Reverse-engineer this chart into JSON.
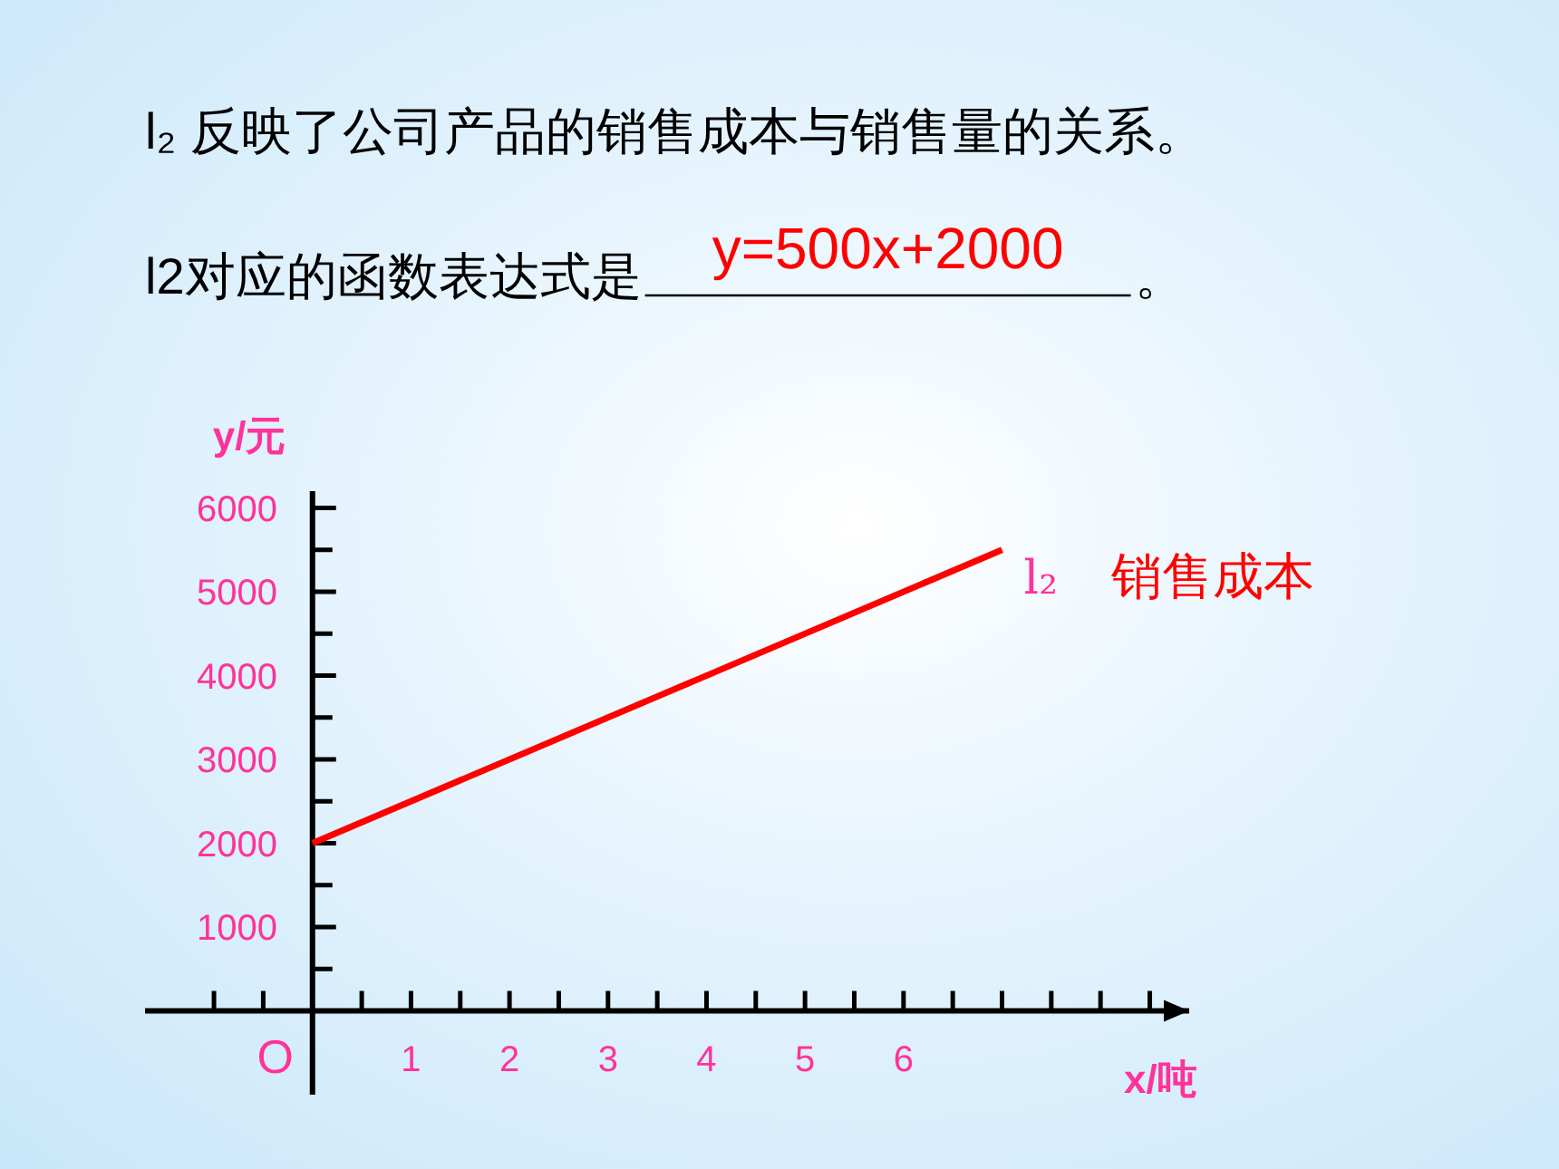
{
  "chart_data": {
    "type": "line",
    "title": "l₂ 反映了公司产品的销售成本与销售量的关系。",
    "subtitle": "l2对应的函数表达式是",
    "annotations": [
      "y=500x+2000",
      "。",
      {
        "text": "l₂",
        "x": 7,
        "y": 5500
      },
      "O"
    ],
    "xlabel": "x/吨",
    "ylabel": "y/元",
    "x": [
      0,
      7
    ],
    "series": [
      {
        "name": "销售成本",
        "color": "#ff0000",
        "values": [
          2000,
          5500
        ]
      }
    ],
    "xlim": [
      -1.7,
      8.9
    ],
    "ylim": [
      -1000,
      6200
    ],
    "xticks": [
      {
        "value": -1,
        "label": null
      },
      {
        "value": -0.5,
        "label": null
      },
      {
        "value": 0.5,
        "label": null
      },
      1,
      {
        "value": 1.5,
        "label": null
      },
      2,
      {
        "value": 2.5,
        "label": null
      },
      3,
      {
        "value": 3.5,
        "label": null
      },
      4,
      {
        "value": 4.5,
        "label": null
      },
      5,
      {
        "value": 5.5,
        "label": null
      },
      6,
      {
        "value": 6.5,
        "label": null
      },
      {
        "value": 7,
        "label": null
      },
      {
        "value": 7.5,
        "label": null
      },
      {
        "value": 8,
        "label": null
      },
      {
        "value": 8.5,
        "label": null
      }
    ],
    "yticks": [
      {
        "value": 500,
        "label": null
      },
      1000,
      {
        "value": 1500,
        "label": null
      },
      2000,
      {
        "value": 2500,
        "label": null
      },
      3000,
      {
        "value": 3500,
        "label": null
      },
      4000,
      {
        "value": 4500,
        "label": null
      },
      5000,
      {
        "value": 5500,
        "label": null
      },
      6000
    ],
    "marker": "none",
    "line_style": "solid"
  }
}
